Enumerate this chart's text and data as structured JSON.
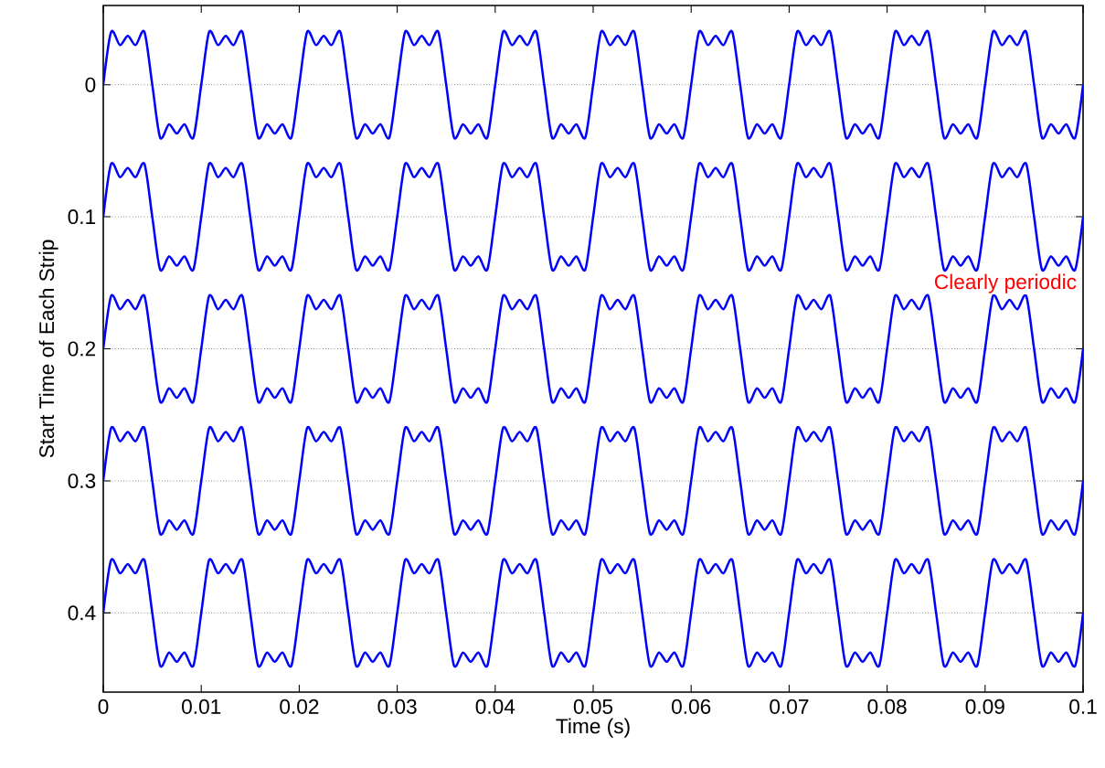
{
  "chart_data": {
    "type": "line",
    "xlabel": "Time (s)",
    "ylabel": "Start Time of Each Strip",
    "x": [
      0,
      0.0008,
      0.0017,
      0.0025,
      0.0033,
      0.0042,
      0.005,
      0.0058,
      0.0067,
      0.0075,
      0.0083,
      0.0092,
      0.01,
      0.0108,
      0.0117,
      0.0125,
      0.0133,
      0.0142,
      0.015,
      0.0158,
      0.0167,
      0.0175,
      0.0183,
      0.0192,
      0.02,
      0.0208,
      0.0217,
      0.0225,
      0.0233,
      0.0242,
      0.025,
      0.0258,
      0.0267,
      0.0275,
      0.0283,
      0.0292,
      0.03,
      0.0308,
      0.0317,
      0.0325,
      0.0333,
      0.0342,
      0.035,
      0.0358,
      0.0367,
      0.0375,
      0.0383,
      0.0392,
      0.04,
      0.0408,
      0.0417,
      0.0425,
      0.0433,
      0.0442,
      0.045,
      0.0458,
      0.0467,
      0.0475,
      0.0483,
      0.0492,
      0.05,
      0.0508,
      0.0517,
      0.0525,
      0.0533,
      0.0542,
      0.055,
      0.0558,
      0.0567,
      0.0575,
      0.0583,
      0.0592,
      0.06,
      0.0608,
      0.0617,
      0.0625,
      0.0633,
      0.0642,
      0.065,
      0.0658,
      0.0667,
      0.0675,
      0.0683,
      0.0692,
      0.07,
      0.0708,
      0.0717,
      0.0725,
      0.0733,
      0.0742,
      0.075,
      0.0758,
      0.0767,
      0.0775,
      0.0783,
      0.0792,
      0.08,
      0.0808,
      0.0817,
      0.0825,
      0.0833,
      0.0842,
      0.085,
      0.0858,
      0.0867,
      0.0875,
      0.0883,
      0.0892,
      0.09,
      0.0908,
      0.0917,
      0.0925,
      0.0933,
      0.0942,
      0.095,
      0.0958,
      0.0967,
      0.0975,
      0.0983,
      0.0992,
      0.1
    ],
    "series": [
      {
        "color": "#0000ff",
        "values": [
          0,
          -0.04,
          -0.03,
          -0.037,
          -0.03,
          -0.04,
          0,
          0.04,
          0.03,
          0.037,
          0.03,
          0.04,
          0,
          -0.04,
          -0.03,
          -0.037,
          -0.03,
          -0.04,
          0,
          0.04,
          0.03,
          0.037,
          0.03,
          0.04,
          0,
          -0.04,
          -0.03,
          -0.037,
          -0.03,
          -0.04,
          0,
          0.04,
          0.03,
          0.037,
          0.03,
          0.04,
          0,
          -0.04,
          -0.03,
          -0.037,
          -0.03,
          -0.04,
          0,
          0.04,
          0.03,
          0.037,
          0.03,
          0.04,
          0,
          -0.04,
          -0.03,
          -0.037,
          -0.03,
          -0.04,
          0,
          0.04,
          0.03,
          0.037,
          0.03,
          0.04,
          0,
          -0.04,
          -0.03,
          -0.037,
          -0.03,
          -0.04,
          0,
          0.04,
          0.03,
          0.037,
          0.03,
          0.04,
          0,
          -0.04,
          -0.03,
          -0.037,
          -0.03,
          -0.04,
          0,
          0.04,
          0.03,
          0.037,
          0.03,
          0.04,
          0,
          -0.04,
          -0.03,
          -0.037,
          -0.03,
          -0.04,
          0,
          0.04,
          0.03,
          0.037,
          0.03,
          0.04,
          0,
          -0.04,
          -0.03,
          -0.037,
          -0.03,
          -0.04,
          0,
          0.04,
          0.03,
          0.037,
          0.03,
          0.04,
          0,
          -0.04,
          -0.03,
          -0.037,
          -0.03,
          -0.04,
          0,
          0.04,
          0.03,
          0.037,
          0.03,
          0.04,
          0
        ]
      },
      {
        "color": "#0000ff",
        "values": [
          0.1,
          0.06,
          0.07,
          0.063,
          0.07,
          0.06,
          0.1,
          0.14,
          0.13,
          0.137,
          0.13,
          0.14,
          0.1,
          0.06,
          0.07,
          0.063,
          0.07,
          0.06,
          0.1,
          0.14,
          0.13,
          0.137,
          0.13,
          0.14,
          0.1,
          0.06,
          0.07,
          0.063,
          0.07,
          0.06,
          0.1,
          0.14,
          0.13,
          0.137,
          0.13,
          0.14,
          0.1,
          0.06,
          0.07,
          0.063,
          0.07,
          0.06,
          0.1,
          0.14,
          0.13,
          0.137,
          0.13,
          0.14,
          0.1,
          0.06,
          0.07,
          0.063,
          0.07,
          0.06,
          0.1,
          0.14,
          0.13,
          0.137,
          0.13,
          0.14,
          0.1,
          0.06,
          0.07,
          0.063,
          0.07,
          0.06,
          0.1,
          0.14,
          0.13,
          0.137,
          0.13,
          0.14,
          0.1,
          0.06,
          0.07,
          0.063,
          0.07,
          0.06,
          0.1,
          0.14,
          0.13,
          0.137,
          0.13,
          0.14,
          0.1,
          0.06,
          0.07,
          0.063,
          0.07,
          0.06,
          0.1,
          0.14,
          0.13,
          0.137,
          0.13,
          0.14,
          0.1,
          0.06,
          0.07,
          0.063,
          0.07,
          0.06,
          0.1,
          0.14,
          0.13,
          0.137,
          0.13,
          0.14,
          0.1,
          0.06,
          0.07,
          0.063,
          0.07,
          0.06,
          0.1,
          0.14,
          0.13,
          0.137,
          0.13,
          0.14,
          0.1
        ]
      },
      {
        "color": "#0000ff",
        "values": [
          0.2,
          0.16,
          0.17,
          0.163,
          0.17,
          0.16,
          0.2,
          0.24,
          0.23,
          0.237,
          0.23,
          0.24,
          0.2,
          0.16,
          0.17,
          0.163,
          0.17,
          0.16,
          0.2,
          0.24,
          0.23,
          0.237,
          0.23,
          0.24,
          0.2,
          0.16,
          0.17,
          0.163,
          0.17,
          0.16,
          0.2,
          0.24,
          0.23,
          0.237,
          0.23,
          0.24,
          0.2,
          0.16,
          0.17,
          0.163,
          0.17,
          0.16,
          0.2,
          0.24,
          0.23,
          0.237,
          0.23,
          0.24,
          0.2,
          0.16,
          0.17,
          0.163,
          0.17,
          0.16,
          0.2,
          0.24,
          0.23,
          0.237,
          0.23,
          0.24,
          0.2,
          0.16,
          0.17,
          0.163,
          0.17,
          0.16,
          0.2,
          0.24,
          0.23,
          0.237,
          0.23,
          0.24,
          0.2,
          0.16,
          0.17,
          0.163,
          0.17,
          0.16,
          0.2,
          0.24,
          0.23,
          0.237,
          0.23,
          0.24,
          0.2,
          0.16,
          0.17,
          0.163,
          0.17,
          0.16,
          0.2,
          0.24,
          0.23,
          0.237,
          0.23,
          0.24,
          0.2,
          0.16,
          0.17,
          0.163,
          0.17,
          0.16,
          0.2,
          0.24,
          0.23,
          0.237,
          0.23,
          0.24,
          0.2,
          0.16,
          0.17,
          0.163,
          0.17,
          0.16,
          0.2,
          0.24,
          0.23,
          0.237,
          0.23,
          0.24,
          0.2
        ]
      },
      {
        "color": "#0000ff",
        "values": [
          0.3,
          0.26,
          0.27,
          0.263,
          0.27,
          0.26,
          0.3,
          0.34,
          0.33,
          0.337,
          0.33,
          0.34,
          0.3,
          0.26,
          0.27,
          0.263,
          0.27,
          0.26,
          0.3,
          0.34,
          0.33,
          0.337,
          0.33,
          0.34,
          0.3,
          0.26,
          0.27,
          0.263,
          0.27,
          0.26,
          0.3,
          0.34,
          0.33,
          0.337,
          0.33,
          0.34,
          0.3,
          0.26,
          0.27,
          0.263,
          0.27,
          0.26,
          0.3,
          0.34,
          0.33,
          0.337,
          0.33,
          0.34,
          0.3,
          0.26,
          0.27,
          0.263,
          0.27,
          0.26,
          0.3,
          0.34,
          0.33,
          0.337,
          0.33,
          0.34,
          0.3,
          0.26,
          0.27,
          0.263,
          0.27,
          0.26,
          0.3,
          0.34,
          0.33,
          0.337,
          0.33,
          0.34,
          0.3,
          0.26,
          0.27,
          0.263,
          0.27,
          0.26,
          0.3,
          0.34,
          0.33,
          0.337,
          0.33,
          0.34,
          0.3,
          0.26,
          0.27,
          0.263,
          0.27,
          0.26,
          0.3,
          0.34,
          0.33,
          0.337,
          0.33,
          0.34,
          0.3,
          0.26,
          0.27,
          0.263,
          0.27,
          0.26,
          0.3,
          0.34,
          0.33,
          0.337,
          0.33,
          0.34,
          0.3,
          0.26,
          0.27,
          0.263,
          0.27,
          0.26,
          0.3,
          0.34,
          0.33,
          0.337,
          0.33,
          0.34,
          0.3
        ]
      },
      {
        "color": "#0000ff",
        "values": [
          0.4,
          0.36,
          0.37,
          0.363,
          0.37,
          0.36,
          0.4,
          0.44,
          0.43,
          0.437,
          0.43,
          0.44,
          0.4,
          0.36,
          0.37,
          0.363,
          0.37,
          0.36,
          0.4,
          0.44,
          0.43,
          0.437,
          0.43,
          0.44,
          0.4,
          0.36,
          0.37,
          0.363,
          0.37,
          0.36,
          0.4,
          0.44,
          0.43,
          0.437,
          0.43,
          0.44,
          0.4,
          0.36,
          0.37,
          0.363,
          0.37,
          0.36,
          0.4,
          0.44,
          0.43,
          0.437,
          0.43,
          0.44,
          0.4,
          0.36,
          0.37,
          0.363,
          0.37,
          0.36,
          0.4,
          0.44,
          0.43,
          0.437,
          0.43,
          0.44,
          0.4,
          0.36,
          0.37,
          0.363,
          0.37,
          0.36,
          0.4,
          0.44,
          0.43,
          0.437,
          0.43,
          0.44,
          0.4,
          0.36,
          0.37,
          0.363,
          0.37,
          0.36,
          0.4,
          0.44,
          0.43,
          0.437,
          0.43,
          0.44,
          0.4,
          0.36,
          0.37,
          0.363,
          0.37,
          0.36,
          0.4,
          0.44,
          0.43,
          0.437,
          0.43,
          0.44,
          0.4,
          0.36,
          0.37,
          0.363,
          0.37,
          0.36,
          0.4,
          0.44,
          0.43,
          0.437,
          0.43,
          0.44,
          0.4,
          0.36,
          0.37,
          0.363,
          0.37,
          0.36,
          0.4,
          0.44,
          0.43,
          0.437,
          0.43,
          0.44,
          0.4
        ]
      }
    ],
    "xlim": [
      0,
      0.1
    ],
    "ylim": [
      0.46,
      -0.06
    ],
    "xticks": [
      0,
      0.01,
      0.02,
      0.03,
      0.04,
      0.05,
      0.06,
      0.07,
      0.08,
      0.09,
      0.1
    ],
    "yticks": [
      0,
      0.1,
      0.2,
      0.3,
      0.4
    ],
    "grid": "y",
    "marker": "none",
    "line_style": "solid",
    "annotations": [
      "Clearly periodic"
    ]
  }
}
